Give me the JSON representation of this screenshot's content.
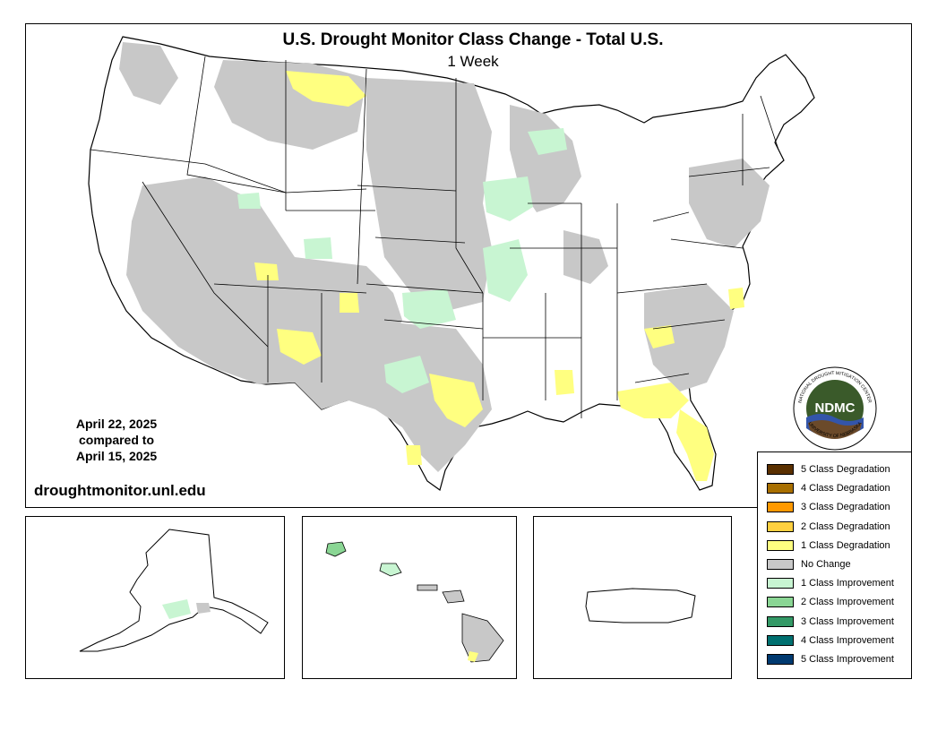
{
  "title": "U.S. Drought Monitor Class Change - Total U.S.",
  "subtitle": "1 Week",
  "date_current": "April 22, 2025",
  "date_compared_label": "compared to",
  "date_previous": "April 15, 2025",
  "website": "droughtmonitor.unl.edu",
  "logo": {
    "text": "NDMC",
    "ring_text": "NATIONAL DROUGHT MITIGATION CENTER",
    "bottom_text": "UNIVERSITY OF NEBRASKA",
    "icon": "ndmc-logo"
  },
  "colors": {
    "no_change": "#c8c8c8",
    "deg1": "#ffff80",
    "impr1": "#c8f5d2"
  },
  "legend": {
    "items": [
      {
        "label": "5 Class Degradation",
        "color": "#5a3000"
      },
      {
        "label": "4 Class Degradation",
        "color": "#a86f00"
      },
      {
        "label": "3 Class Degradation",
        "color": "#ff9900"
      },
      {
        "label": "2 Class Degradation",
        "color": "#ffd040"
      },
      {
        "label": "1 Class Degradation",
        "color": "#ffff80"
      },
      {
        "label": "No Change",
        "color": "#c8c8c8"
      },
      {
        "label": "1 Class Improvement",
        "color": "#c8f5d2"
      },
      {
        "label": "2 Class Improvement",
        "color": "#8ad694"
      },
      {
        "label": "3 Class Improvement",
        "color": "#339966"
      },
      {
        "label": "4 Class Improvement",
        "color": "#007070"
      },
      {
        "label": "5 Class Improvement",
        "color": "#003a70"
      }
    ]
  }
}
